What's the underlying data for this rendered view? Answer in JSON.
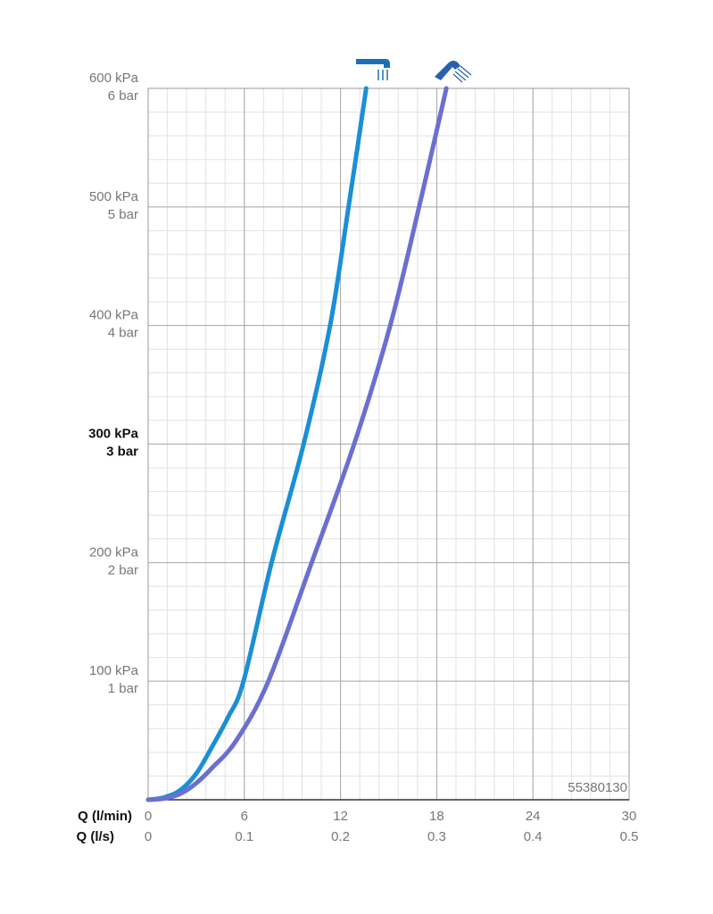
{
  "chart_data": {
    "type": "line",
    "xlabel": "Q (l/min)",
    "x2label": "Q (l/s)",
    "xlim": [
      0,
      30
    ],
    "xticks": [
      0,
      6,
      12,
      18,
      24,
      30
    ],
    "x2lim": [
      0,
      0.5
    ],
    "x2ticks": [
      0,
      0.1,
      0.2,
      0.3,
      0.4,
      0.5
    ],
    "ylim": [
      0,
      600
    ],
    "yticks": [
      {
        "value": 100,
        "label": "100 kPa"
      },
      {
        "value": 200,
        "label": "200 kPa"
      },
      {
        "value": 300,
        "label": "300 kPa"
      },
      {
        "value": 400,
        "label": "400 kPa"
      },
      {
        "value": 500,
        "label": "500 kPa"
      },
      {
        "value": 600,
        "label": "600 kPa"
      }
    ],
    "ytick_sublabels": [
      "1 bar",
      "2 bar",
      "3 bar",
      "4 bar",
      "5 bar",
      "6 bar"
    ],
    "emphasized_ytick": 300,
    "grid": true,
    "xminor": 1.2,
    "yminor": 20,
    "annotation": "55380130",
    "series": [
      {
        "color": "#1b8fd6",
        "x": [
          0,
          1,
          2,
          3,
          4,
          5,
          5.95,
          7.7,
          9.7,
          11.35,
          12.5,
          13.6
        ],
        "values": [
          0,
          2,
          8,
          22,
          45,
          70,
          100,
          200,
          300,
          400,
          500,
          600
        ]
      },
      {
        "color": "#6b6fd0",
        "x": [
          0,
          1,
          2,
          3,
          4,
          5.5,
          7.5,
          10.2,
          12.85,
          15.1,
          16.9,
          18.6
        ],
        "values": [
          0,
          1,
          5,
          14,
          27,
          50,
          100,
          200,
          300,
          400,
          500,
          600
        ]
      }
    ]
  }
}
